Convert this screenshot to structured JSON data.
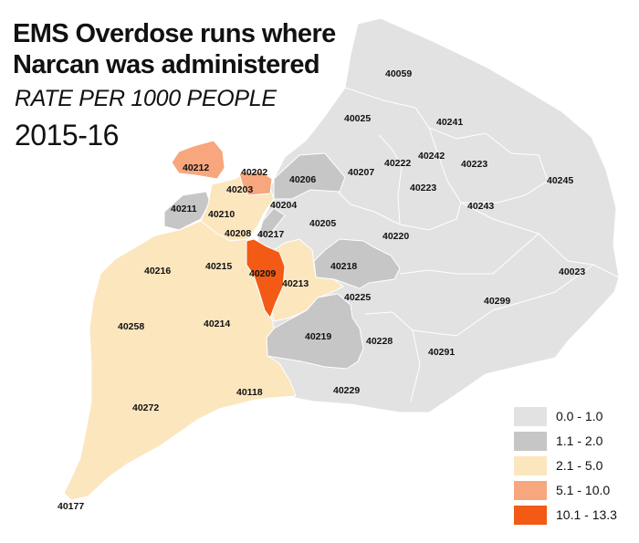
{
  "title_lines": [
    "EMS Overdose runs where",
    "Narcan was administered"
  ],
  "subtitle": "RATE PER 1000 PEOPLE",
  "year": "2015-16",
  "colors": {
    "c0": "#e2e2e2",
    "c1": "#c6c6c6",
    "c2": "#fbe6be",
    "c3": "#f8a67d",
    "c4": "#f25a15",
    "border": "#ffffff"
  },
  "legend": [
    {
      "label": "0.0 - 1.0",
      "color": "#e2e2e2"
    },
    {
      "label": "1.1 - 2.0",
      "color": "#c6c6c6"
    },
    {
      "label": "2.1 - 5.0",
      "color": "#fbe6be"
    },
    {
      "label": "5.1 - 10.0",
      "color": "#f8a67d"
    },
    {
      "label": "10.1 - 13.3",
      "color": "#f25a15"
    }
  ],
  "zip_labels": {
    "z40059": "40059",
    "z40025": "40025",
    "z40241": "40241",
    "z40212": "40212",
    "z40202": "40202",
    "z40206": "40206",
    "z40207": "40207",
    "z40222": "40222",
    "z40242": "40242",
    "z40223a": "40223",
    "z40223b": "40223",
    "z40245": "40245",
    "z40203": "40203",
    "z40211": "40211",
    "z40210": "40210",
    "z40204": "40204",
    "z40243": "40243",
    "z40208": "40208",
    "z40217": "40217",
    "z40205": "40205",
    "z40220": "40220",
    "z40216": "40216",
    "z40215": "40215",
    "z40209": "40209",
    "z40213": "40213",
    "z40218": "40218",
    "z40023": "40023",
    "z40225": "40225",
    "z40299": "40299",
    "z40258": "40258",
    "z40214": "40214",
    "z40219": "40219",
    "z40228": "40228",
    "z40291": "40291",
    "z40118": "40118",
    "z40229": "40229",
    "z40272": "40272",
    "z40177": "40177"
  }
}
